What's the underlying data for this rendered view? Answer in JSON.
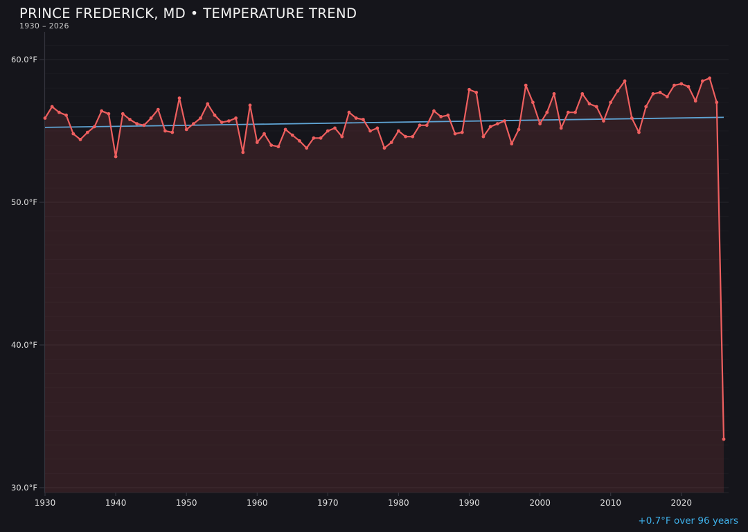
{
  "chart_data": {
    "type": "line",
    "title": "PRINCE FREDERICK, MD • TEMPERATURE TREND",
    "subtitle": "1930 – 2026",
    "unit": "°F",
    "x_start_year": 1930,
    "x_end_year": 2026,
    "ylim": [
      29.7,
      61.9
    ],
    "grid": "horizontal-minor-and-major",
    "legend": "none",
    "x_axis": {
      "ticks": [
        1930,
        1940,
        1950,
        1960,
        1970,
        1980,
        1990,
        2000,
        2010,
        2020
      ]
    },
    "y_axis": {
      "ticks": [
        {
          "value": 60,
          "label": "60.0°F"
        },
        {
          "value": 50,
          "label": "50.0°F"
        },
        {
          "value": 40,
          "label": "40.0°F"
        },
        {
          "value": 30,
          "label": "30.0°F"
        }
      ]
    },
    "series": [
      {
        "name": "annual-temperature",
        "color": "#ee5f5f",
        "values": [
          55.9,
          56.7,
          56.3,
          56.1,
          54.8,
          54.4,
          54.9,
          55.3,
          56.4,
          56.2,
          53.2,
          56.2,
          55.8,
          55.5,
          55.4,
          55.9,
          56.5,
          55.0,
          54.9,
          57.3,
          55.1,
          55.5,
          55.9,
          56.9,
          56.1,
          55.6,
          55.7,
          55.9,
          53.5,
          56.8,
          54.2,
          54.8,
          54.0,
          53.9,
          55.1,
          54.7,
          54.3,
          53.8,
          54.5,
          54.5,
          55.0,
          55.2,
          54.6,
          56.3,
          55.9,
          55.8,
          55.0,
          55.2,
          53.8,
          54.2,
          55.0,
          54.6,
          54.6,
          55.4,
          55.4,
          56.4,
          56.0,
          56.1,
          54.8,
          54.9,
          57.9,
          57.7,
          54.6,
          55.3,
          55.5,
          55.7,
          54.1,
          55.1,
          58.2,
          57.0,
          55.5,
          56.3,
          57.6,
          55.2,
          56.3,
          56.3,
          57.6,
          56.9,
          56.7,
          55.7,
          57.0,
          57.8,
          58.5,
          55.9,
          54.9,
          56.7,
          57.6,
          57.7,
          57.4,
          58.2,
          58.3,
          58.1,
          57.1,
          58.5,
          58.7,
          57.0,
          33.4
        ]
      }
    ],
    "trend": {
      "start_year": 1930,
      "start_value": 55.25,
      "end_year": 2026,
      "end_value": 55.95,
      "delta": "+0.7°F",
      "span_years": 96,
      "label": "+0.7°F over 96 years"
    }
  },
  "colors": {
    "background": "#15151b",
    "line": "#ee5f5f",
    "point": "#ee5f5f",
    "area_fill": "rgba(240,95,95,0.13)",
    "trend_line": "#5fa4d4",
    "annotation_text": "#3fb2ec",
    "title_text": "#f2f2f2",
    "subtitle_text": "#c9c9c9",
    "tick_label": "#dedede",
    "spine": "#34343d",
    "grid_major": "rgba(255,255,255,0.07)",
    "grid_minor": "rgba(255,255,255,0.028)"
  }
}
